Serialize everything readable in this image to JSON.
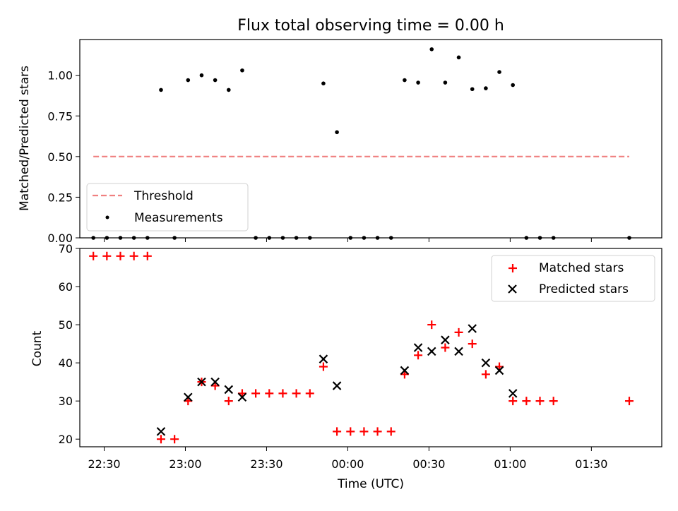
{
  "chart_data": [
    {
      "type": "scatter",
      "title": "Flux total observing time = 0.00 h",
      "xlabel": "",
      "ylabel": "Matched/Predicted stars",
      "ylim": [
        0,
        1.22
      ],
      "yticks": [
        "0.00",
        "0.25",
        "0.50",
        "0.75",
        "1.00"
      ],
      "legend_position": "lower-left",
      "threshold": {
        "name": "Threshold",
        "value": 0.5,
        "x_start": "22:26",
        "x_end": "01:44",
        "color": "#f08080",
        "style": "dashed"
      },
      "series": [
        {
          "name": "Measurements",
          "marker": "dot",
          "color": "#000000",
          "points": [
            [
              "22:26",
              0
            ],
            [
              "22:31",
              0
            ],
            [
              "22:36",
              0
            ],
            [
              "22:41",
              0
            ],
            [
              "22:46",
              0
            ],
            [
              "22:51",
              0.91
            ],
            [
              "22:56",
              0
            ],
            [
              "23:01",
              0.97
            ],
            [
              "23:06",
              1.0
            ],
            [
              "23:11",
              0.97
            ],
            [
              "23:16",
              0.91
            ],
            [
              "23:21",
              1.03
            ],
            [
              "23:26",
              0
            ],
            [
              "23:31",
              0
            ],
            [
              "23:36",
              0
            ],
            [
              "23:41",
              0
            ],
            [
              "23:46",
              0
            ],
            [
              "23:51",
              0.95
            ],
            [
              "23:56",
              0.65
            ],
            [
              "00:01",
              0
            ],
            [
              "00:06",
              0
            ],
            [
              "00:11",
              0
            ],
            [
              "00:16",
              0
            ],
            [
              "00:21",
              0.97
            ],
            [
              "00:26",
              0.955
            ],
            [
              "00:31",
              1.16
            ],
            [
              "00:36",
              0.955
            ],
            [
              "00:41",
              1.11
            ],
            [
              "00:46",
              0.915
            ],
            [
              "00:51",
              0.92
            ],
            [
              "00:56",
              1.02
            ],
            [
              "01:01",
              0.94
            ],
            [
              "01:06",
              0
            ],
            [
              "01:11",
              0
            ],
            [
              "01:16",
              0
            ],
            [
              "01:44",
              0
            ]
          ]
        }
      ]
    },
    {
      "type": "scatter",
      "title": "",
      "xlabel": "Time (UTC)",
      "ylabel": "Count",
      "ylim": [
        18,
        70
      ],
      "yticks": [
        "20",
        "30",
        "40",
        "50",
        "60",
        "70"
      ],
      "xlim": [
        "22:21",
        "01:56"
      ],
      "xticks": [
        "22:30",
        "23:00",
        "23:30",
        "00:00",
        "00:30",
        "01:00",
        "01:30"
      ],
      "legend_position": "upper-right",
      "series": [
        {
          "name": "Matched stars",
          "marker": "plus",
          "color": "#ff0000",
          "points": [
            [
              "22:26",
              68
            ],
            [
              "22:31",
              68
            ],
            [
              "22:36",
              68
            ],
            [
              "22:41",
              68
            ],
            [
              "22:46",
              68
            ],
            [
              "22:51",
              20
            ],
            [
              "22:56",
              20
            ],
            [
              "23:01",
              30
            ],
            [
              "23:06",
              35
            ],
            [
              "23:11",
              34
            ],
            [
              "23:16",
              30
            ],
            [
              "23:21",
              32
            ],
            [
              "23:26",
              32
            ],
            [
              "23:31",
              32
            ],
            [
              "23:36",
              32
            ],
            [
              "23:41",
              32
            ],
            [
              "23:46",
              32
            ],
            [
              "23:51",
              39
            ],
            [
              "23:56",
              22
            ],
            [
              "00:01",
              22
            ],
            [
              "00:06",
              22
            ],
            [
              "00:11",
              22
            ],
            [
              "00:16",
              22
            ],
            [
              "00:21",
              37
            ],
            [
              "00:26",
              42
            ],
            [
              "00:31",
              50
            ],
            [
              "00:36",
              44
            ],
            [
              "00:41",
              48
            ],
            [
              "00:46",
              45
            ],
            [
              "00:51",
              37
            ],
            [
              "00:56",
              39
            ],
            [
              "01:01",
              30
            ],
            [
              "01:06",
              30
            ],
            [
              "01:11",
              30
            ],
            [
              "01:16",
              30
            ],
            [
              "01:44",
              30
            ]
          ]
        },
        {
          "name": "Predicted stars",
          "marker": "x",
          "color": "#000000",
          "points": [
            [
              "22:51",
              22
            ],
            [
              "23:01",
              31
            ],
            [
              "23:06",
              35
            ],
            [
              "23:11",
              35
            ],
            [
              "23:16",
              33
            ],
            [
              "23:21",
              31
            ],
            [
              "23:51",
              41
            ],
            [
              "23:56",
              34
            ],
            [
              "00:21",
              38
            ],
            [
              "00:26",
              44
            ],
            [
              "00:31",
              43
            ],
            [
              "00:36",
              46
            ],
            [
              "00:41",
              43
            ],
            [
              "00:46",
              49
            ],
            [
              "00:51",
              40
            ],
            [
              "00:56",
              38
            ],
            [
              "01:01",
              32
            ]
          ]
        }
      ]
    }
  ]
}
